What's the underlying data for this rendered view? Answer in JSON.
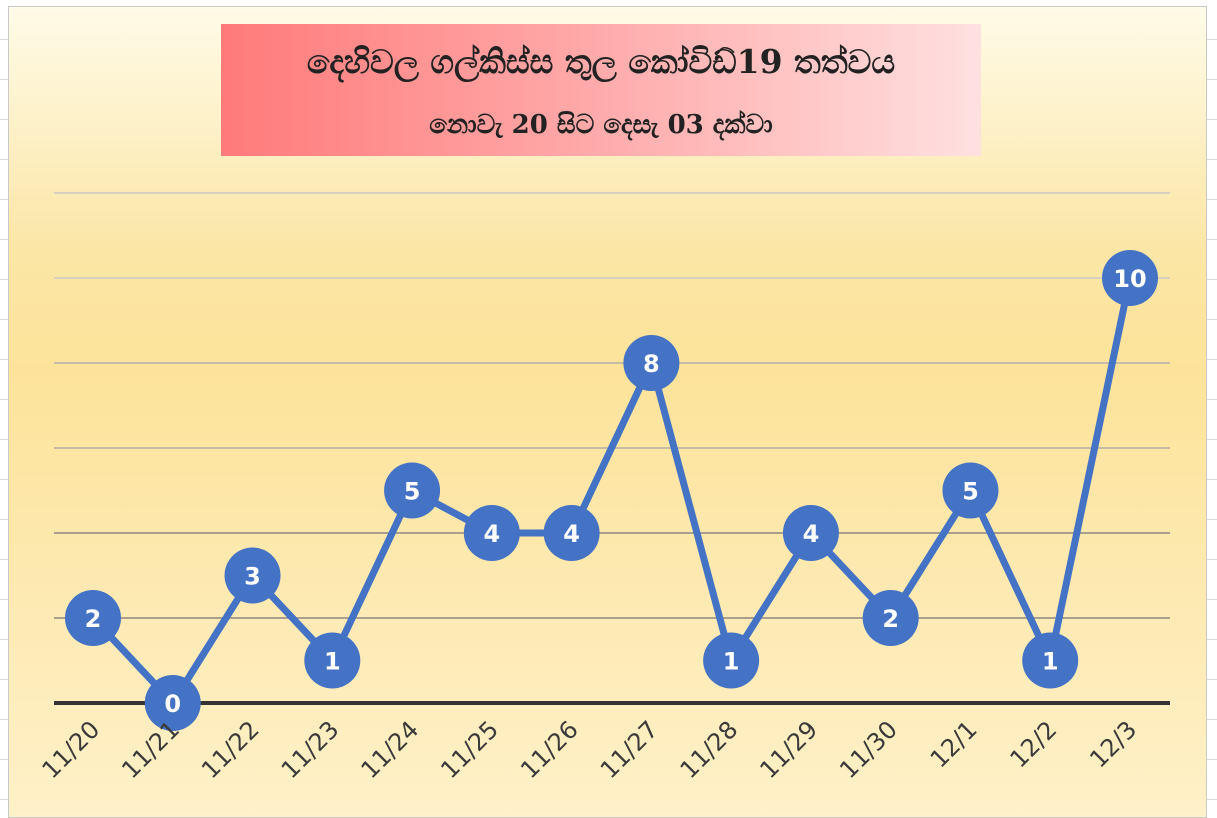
{
  "colors": {
    "series": "#4472c4",
    "label": "#ffffff",
    "axis": "#333333",
    "grid": "#bfb9a8",
    "title_box_left": "#ff7a7a",
    "title_box_right": "#ffe0e0"
  },
  "chart_data": {
    "type": "line",
    "title": "දෙහිවල ගල්කිස්ස තුල කෝවිඩ්19 තත්වය",
    "subtitle": "නොවැ 20 සිට දෙසැ 03 දක්වා",
    "xlabel": "",
    "ylabel": "",
    "categories": [
      "11/20",
      "11/21",
      "11/22",
      "11/23",
      "11/24",
      "11/25",
      "11/26",
      "11/27",
      "11/28",
      "11/29",
      "11/30",
      "12/1",
      "12/2",
      "12/3"
    ],
    "series": [
      {
        "values": [
          2,
          0,
          3,
          1,
          5,
          4,
          4,
          8,
          1,
          4,
          2,
          5,
          1,
          10
        ]
      }
    ],
    "ylim": [
      0,
      12
    ],
    "ytick_step": 2,
    "y_tick_labels_shown": false,
    "grid": true,
    "legend": "none",
    "data_labels": "inside-markers"
  }
}
